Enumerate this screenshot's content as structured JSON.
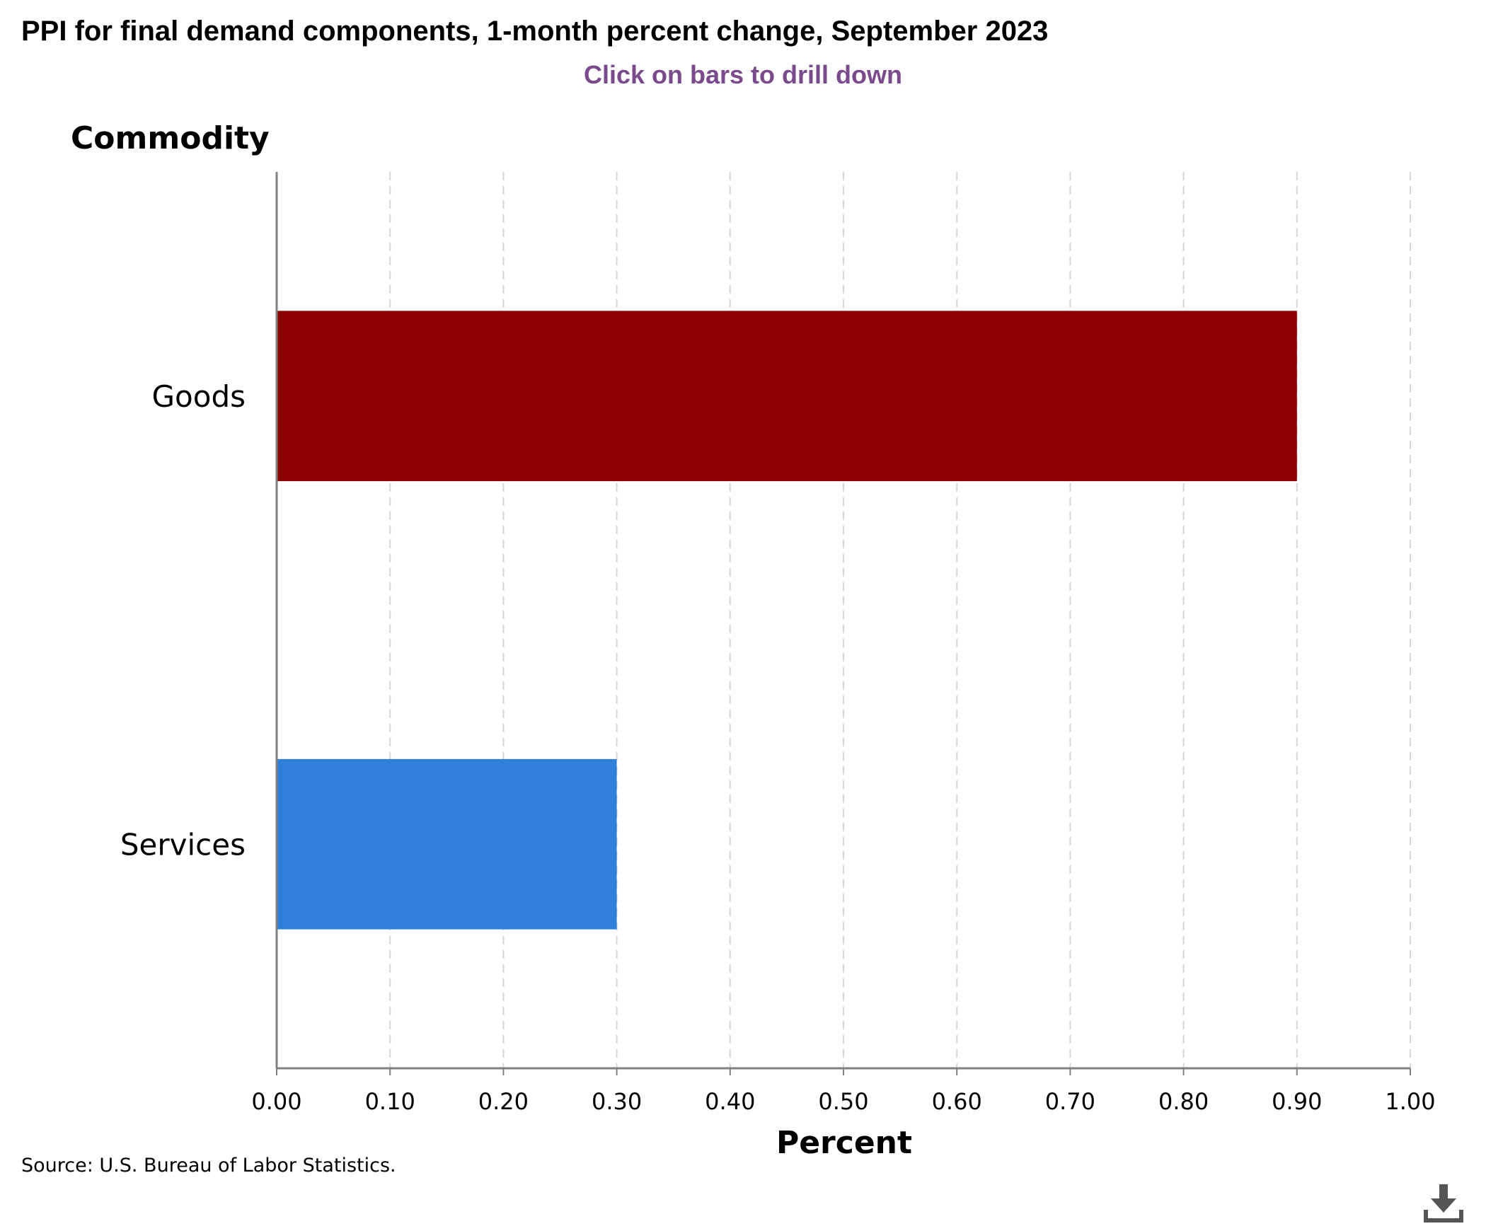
{
  "header": {
    "title": "PPI for final demand components, 1-month percent change, September 2023",
    "subtitle": "Click on bars to drill down"
  },
  "footer": {
    "source": "Source: U.S. Bureau of Labor Statistics."
  },
  "toolbar": {
    "download_icon": "download-icon"
  },
  "chart_data": {
    "type": "bar",
    "orientation": "horizontal",
    "title": "PPI for final demand components, 1-month percent change, September 2023",
    "subtitle": "Click on bars to drill down",
    "categories": [
      "Goods",
      "Services"
    ],
    "values": [
      0.9,
      0.3
    ],
    "colors": [
      "#8b0000",
      "#2f80db"
    ],
    "xlabel": "Percent",
    "ylabel": "Commodity",
    "xlim": [
      0,
      1.0
    ],
    "xticks": [
      "0.00",
      "0.10",
      "0.20",
      "0.30",
      "0.40",
      "0.50",
      "0.60",
      "0.70",
      "0.80",
      "0.90",
      "1.00"
    ],
    "grid": true,
    "legend": "none"
  }
}
